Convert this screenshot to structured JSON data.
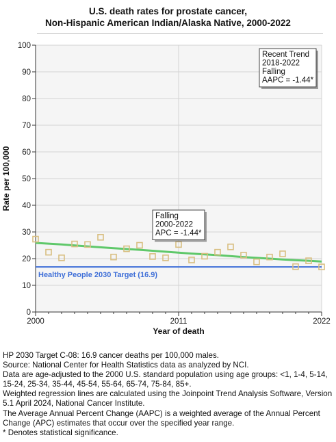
{
  "chart_data": {
    "type": "scatter",
    "title_lines": [
      "U.S. death rates for prostate cancer,",
      "Non-Hispanic American Indian/Alaska Native,  2000-2022"
    ],
    "xlabel": "Year of death",
    "ylabel": "Rate per 100,000",
    "xlim": [
      2000,
      2022
    ],
    "ylim": [
      0,
      100
    ],
    "x_ticks": [
      2000,
      2011,
      2022
    ],
    "y_ticks": [
      0,
      10,
      20,
      30,
      40,
      50,
      60,
      70,
      80,
      90,
      100
    ],
    "grid": true,
    "observed": {
      "x": [
        2000,
        2001,
        2002,
        2003,
        2004,
        2005,
        2006,
        2007,
        2008,
        2009,
        2010,
        2011,
        2012,
        2013,
        2014,
        2015,
        2016,
        2017,
        2018,
        2019,
        2020,
        2021,
        2022
      ],
      "y": [
        27.3,
        22.4,
        20.3,
        25.5,
        25.3,
        28.0,
        20.6,
        23.7,
        25.0,
        20.8,
        20.3,
        25.3,
        19.5,
        20.9,
        22.4,
        24.4,
        21.3,
        18.8,
        20.6,
        21.8,
        17.0,
        19.2,
        16.9
      ],
      "marker_color": "#d9bf82"
    },
    "trend": {
      "x": [
        2000,
        2002,
        2004,
        2006,
        2008,
        2010,
        2012,
        2014,
        2016,
        2018,
        2019,
        2020,
        2021,
        2022
      ],
      "y": [
        25.9,
        25.3,
        24.6,
        23.9,
        23.3,
        22.6,
        21.9,
        21.3,
        20.6,
        20.0,
        19.7,
        19.4,
        19.2,
        18.9
      ],
      "color": "#5fc86a"
    },
    "target": {
      "value": 16.9,
      "label": "Healthy People 2030 Target (16.9)",
      "color": "#3f6fd8"
    },
    "annotations": [
      {
        "lines": [
          "Recent Trend",
          "2018-2022",
          "Falling",
          "AAPC = -1.44*"
        ],
        "anchor": "top-right"
      },
      {
        "lines": [
          "Falling",
          "2000-2022",
          "APC = -1.44*"
        ],
        "anchor": "center"
      }
    ]
  },
  "notes": [
    "HP 2030 Target C-08: 16.9 cancer deaths per 100,000 males.",
    "Source: National Center for Health Statistics data as analyzed by NCI.",
    "Data are age-adjusted to the 2000 U.S. standard population using age groups: <1, 1-4, 5-14, 15-24, 25-34, 35-44, 45-54, 55-64, 65-74, 75-84, 85+.",
    "Weighted regression lines are calculated using the Joinpoint Trend Analysis Software, Version 5.1 April 2024, National Cancer Institute.",
    "The Average Annual Percent Change (AAPC) is a weighted average of the Annual Percent Change (APC) estimates that occur over the specified year range.",
    "* Denotes statistical significance."
  ]
}
